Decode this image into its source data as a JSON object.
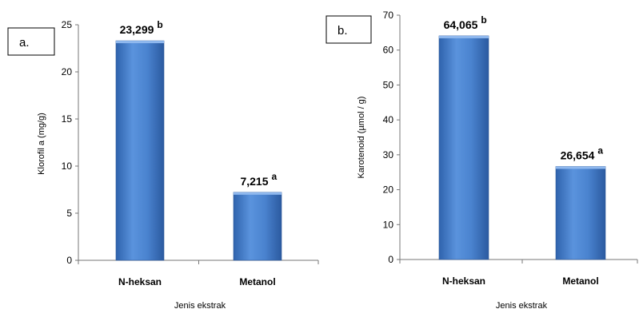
{
  "chart_data": [
    {
      "type": "bar",
      "panel_label": "a.",
      "ylabel": "Klorofil a (mg/g)",
      "xlabel": "Jenis ekstrak",
      "ylim": [
        0,
        25
      ],
      "yticks": [
        "0",
        "5",
        "10",
        "15",
        "20",
        "25"
      ],
      "categories": [
        "N-heksan",
        "Metanol"
      ],
      "values": [
        23.299,
        7.215
      ],
      "data_labels": [
        "23,299",
        "7,215"
      ],
      "significance": [
        "b",
        "a"
      ],
      "bar_color": "#3f78c8"
    },
    {
      "type": "bar",
      "panel_label": "b.",
      "ylabel": "Karotenoid (µmol / g)",
      "xlabel": "Jenis ekstrak",
      "ylim": [
        0,
        70
      ],
      "yticks": [
        "0",
        "10",
        "20",
        "30",
        "40",
        "50",
        "60",
        "70"
      ],
      "categories": [
        "N-heksan",
        "Metanol"
      ],
      "values": [
        64.065,
        26.654
      ],
      "data_labels": [
        "64,065",
        "26,654"
      ],
      "significance": [
        "b",
        "a"
      ],
      "bar_color": "#3f78c8"
    }
  ]
}
